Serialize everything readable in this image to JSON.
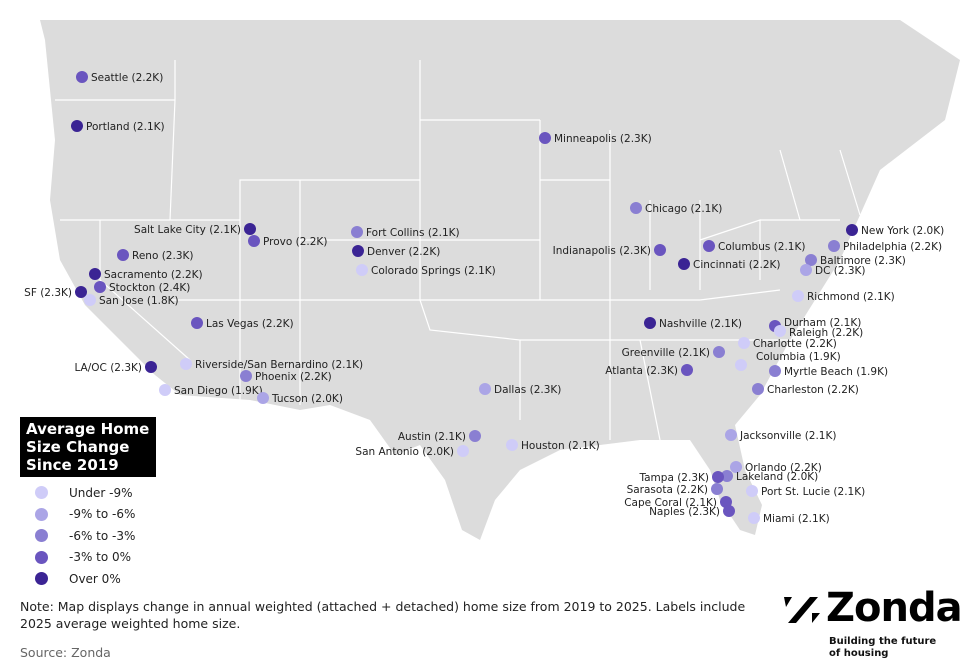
{
  "legend": {
    "title": "Average Home Size Change Since 2019",
    "items": [
      {
        "label": "Under -9%",
        "color": "#cfccf8"
      },
      {
        "label": "-9% to -6%",
        "color": "#aba5e6"
      },
      {
        "label": "-6% to -3%",
        "color": "#8a7fd2"
      },
      {
        "label": "-3% to 0%",
        "color": "#6a55bf"
      },
      {
        "label": "Over 0%",
        "color": "#3b2494"
      }
    ]
  },
  "cities": [
    {
      "label": "Seattle (2.2K)",
      "cat": 3
    },
    {
      "label": "Portland (2.1K)",
      "cat": 4
    },
    {
      "label": "SF (2.3K)",
      "cat": 4
    },
    {
      "label": "Sacramento (2.2K)",
      "cat": 4
    },
    {
      "label": "Stockton (2.4K)",
      "cat": 3
    },
    {
      "label": "San Jose (1.8K)",
      "cat": 0
    },
    {
      "label": "Reno (2.3K)",
      "cat": 3
    },
    {
      "label": "Las Vegas (2.2K)",
      "cat": 3
    },
    {
      "label": "LA/OC (2.3K)",
      "cat": 4
    },
    {
      "label": "Riverside/San Bernardino (2.1K)",
      "cat": 0
    },
    {
      "label": "San Diego (1.9K)",
      "cat": 0
    },
    {
      "label": "Phoenix (2.2K)",
      "cat": 2
    },
    {
      "label": "Tucson (2.0K)",
      "cat": 1
    },
    {
      "label": "Salt Lake City (2.1K)",
      "cat": 4
    },
    {
      "label": "Provo (2.2K)",
      "cat": 3
    },
    {
      "label": "Fort Collins (2.1K)",
      "cat": 2
    },
    {
      "label": "Denver (2.2K)",
      "cat": 4
    },
    {
      "label": "Colorado Springs (2.1K)",
      "cat": 0
    },
    {
      "label": "Dallas (2.3K)",
      "cat": 1
    },
    {
      "label": "Austin (2.1K)",
      "cat": 2
    },
    {
      "label": "San Antonio (2.0K)",
      "cat": 0
    },
    {
      "label": "Houston (2.1K)",
      "cat": 0
    },
    {
      "label": "Minneapolis (2.3K)",
      "cat": 3
    },
    {
      "label": "Chicago (2.1K)",
      "cat": 2
    },
    {
      "label": "Indianapolis (2.3K)",
      "cat": 3
    },
    {
      "label": "Columbus (2.1K)",
      "cat": 3
    },
    {
      "label": "Cincinnati (2.2K)",
      "cat": 4
    },
    {
      "label": "Nashville (2.1K)",
      "cat": 4
    },
    {
      "label": "New York (2.0K)",
      "cat": 4
    },
    {
      "label": "Philadelphia (2.2K)",
      "cat": 2
    },
    {
      "label": "Baltimore (2.3K)",
      "cat": 2
    },
    {
      "label": "DC (2.3K)",
      "cat": 1
    },
    {
      "label": "Richmond (2.1K)",
      "cat": 0
    },
    {
      "label": "Durham (2.1K)",
      "cat": 3
    },
    {
      "label": "Raleigh (2.2K)",
      "cat": 0
    },
    {
      "label": "Charlotte (2.2K)",
      "cat": 0
    },
    {
      "label": "Columbia (1.9K)",
      "cat": 0
    },
    {
      "label": "Greenville (2.1K)",
      "cat": 2
    },
    {
      "label": "Atlanta (2.3K)",
      "cat": 3
    },
    {
      "label": "Myrtle Beach (1.9K)",
      "cat": 2
    },
    {
      "label": "Charleston (2.2K)",
      "cat": 2
    },
    {
      "label": "Jacksonville (2.1K)",
      "cat": 1
    },
    {
      "label": "Orlando (2.2K)",
      "cat": 1
    },
    {
      "label": "Lakeland (2.0K)",
      "cat": 2
    },
    {
      "label": "Tampa (2.3K)",
      "cat": 3
    },
    {
      "label": "Sarasota (2.2K)",
      "cat": 2
    },
    {
      "label": "Port St. Lucie (2.1K)",
      "cat": 0
    },
    {
      "label": "Cape Coral (2.1K)",
      "cat": 3
    },
    {
      "label": "Naples (2.3K)",
      "cat": 3
    },
    {
      "label": "Miami (2.1K)",
      "cat": 0
    }
  ],
  "note": "Note: Map displays change in annual weighted (attached + detached) home size from 2019 to 2025. Labels include 2025 average weighted home size.",
  "source": "Source: Zonda",
  "logo": {
    "word": "Zonda",
    "tagline": "Building the future of housing"
  },
  "colors": {
    "land": "#dcdcdc",
    "borders": "#ffffff"
  }
}
